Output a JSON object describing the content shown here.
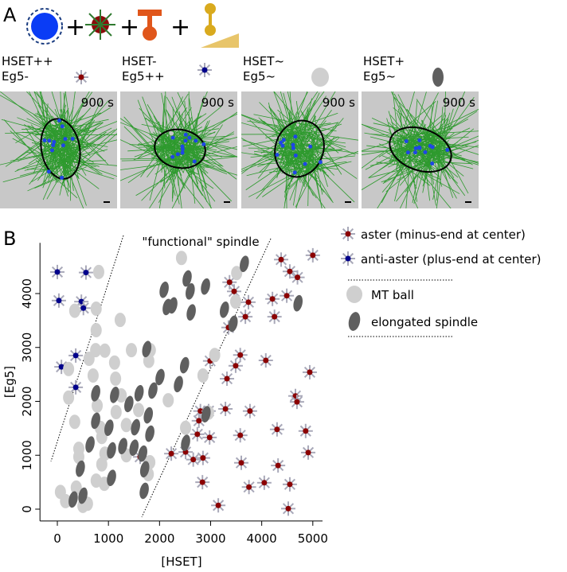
{
  "panel_a": {
    "label": "A",
    "conditions": [
      {
        "lines": [
          "HSET++",
          "Eg5-"
        ],
        "time": "900 s"
      },
      {
        "lines": [
          "HSET-",
          "Eg5++"
        ],
        "time": "900 s"
      },
      {
        "lines": [
          "HSET~",
          "Eg5~"
        ],
        "time": "900 s"
      },
      {
        "lines": [
          "HSET+",
          "Eg5~"
        ],
        "time": "900 s"
      }
    ]
  },
  "chart_data": {
    "type": "scatter",
    "panel_label": "B",
    "x_label": "[HSET]",
    "y_label": "[Eg5]",
    "annotation": "\"functional\" spindle",
    "xlim": [
      -340,
      5190
    ],
    "ylim": [
      -220,
      4940
    ],
    "xticks": [
      0,
      1000,
      2000,
      3000,
      4000,
      5000
    ],
    "yticks": [
      0,
      1000,
      2000,
      3000,
      4000
    ],
    "series": [
      {
        "name": "aster (minus-end at center)",
        "color": "#8b0000",
        "marker": "aster",
        "x": [
          4380,
          5000,
          4550,
          4700,
          3370,
          3460,
          3740,
          4210,
          4490,
          3680,
          4250,
          3350,
          2990,
          3580,
          3490,
          4080,
          3320,
          4940,
          4660,
          4690,
          2800,
          2960,
          3290,
          3770,
          2770,
          2740,
          2980,
          3580,
          4300,
          4860,
          1620,
          2230,
          2510,
          2660,
          2850,
          3600,
          4320,
          4910,
          2840,
          3750,
          4050,
          4550,
          3150,
          4520
        ],
        "values": [
          4630,
          4710,
          4410,
          4300,
          4210,
          4040,
          3840,
          3900,
          3960,
          3570,
          3570,
          3370,
          2750,
          2860,
          2660,
          2760,
          2420,
          2540,
          2100,
          1990,
          1820,
          1820,
          1860,
          1820,
          1640,
          1390,
          1330,
          1370,
          1480,
          1450,
          970,
          1030,
          1060,
          920,
          950,
          860,
          810,
          1050,
          500,
          410,
          490,
          460,
          70,
          10
        ]
      },
      {
        "name": "anti-aster (plus-end at center)",
        "color": "#00008b",
        "marker": "aster",
        "x": [
          0,
          560,
          30,
          470,
          510,
          360,
          80,
          360
        ],
        "values": [
          4400,
          4390,
          3870,
          3850,
          3730,
          2850,
          2640,
          2260
        ]
      },
      {
        "name": "MT ball",
        "color": "#cfcfcf",
        "marker": "ball",
        "x": [
          2430,
          810,
          3510,
          3490,
          340,
          760,
          1230,
          760,
          750,
          930,
          1450,
          1820,
          620,
          1120,
          1790,
          3080,
          220,
          700,
          1140,
          2850,
          220,
          1250,
          2170,
          780,
          1150,
          1590,
          340,
          840,
          1350,
          870,
          420,
          420,
          930,
          1350,
          870,
          760,
          920,
          60,
          370,
          160,
          500,
          590,
          1810,
          1780,
          2510,
          2960
        ],
        "values": [
          4660,
          4400,
          4380,
          3850,
          3680,
          3720,
          3510,
          3320,
          2950,
          2940,
          2950,
          2950,
          2790,
          2720,
          2750,
          2860,
          2600,
          2480,
          2420,
          2480,
          2070,
          2110,
          2020,
          1920,
          1800,
          1840,
          1620,
          1510,
          1560,
          1340,
          1120,
          970,
          1030,
          1000,
          830,
          530,
          470,
          320,
          400,
          150,
          60,
          100,
          870,
          650,
          1510,
          1790
        ]
      },
      {
        "name": "elongated spindle",
        "color": "#5f5f5f",
        "marker": "spindle",
        "x": [
          2540,
          3660,
          2600,
          2900,
          2090,
          2260,
          2150,
          2620,
          3270,
          4710,
          3440,
          1750,
          2490,
          2010,
          2370,
          750,
          1120,
          1600,
          1870,
          1400,
          1780,
          2910,
          750,
          1010,
          1530,
          1810,
          640,
          1060,
          1280,
          1500,
          2510,
          1670,
          450,
          1710,
          1060,
          310,
          500,
          1700
        ],
        "values": [
          4280,
          4550,
          4040,
          4130,
          4070,
          3780,
          3750,
          3650,
          3700,
          3820,
          3440,
          2970,
          2670,
          2450,
          2320,
          2150,
          2120,
          2150,
          2200,
          1950,
          1740,
          1760,
          1640,
          1510,
          1520,
          1400,
          1200,
          1090,
          1170,
          1140,
          1230,
          1030,
          750,
          740,
          580,
          180,
          250,
          340
        ]
      }
    ]
  }
}
